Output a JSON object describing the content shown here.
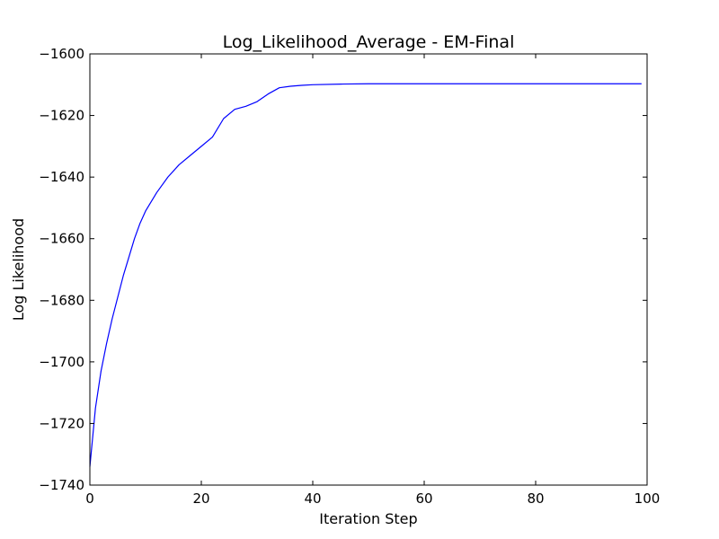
{
  "chart_data": {
    "type": "line",
    "title": "Log_Likelihood_Average - EM-Final",
    "xlabel": "Iteration Step",
    "ylabel": "Log Likelihood",
    "xlim": [
      0,
      100
    ],
    "ylim": [
      -1740,
      -1600
    ],
    "xticks": [
      0,
      20,
      40,
      60,
      80,
      100
    ],
    "yticks": [
      -1740,
      -1720,
      -1700,
      -1680,
      -1660,
      -1640,
      -1620,
      -1600
    ],
    "xtick_labels": [
      "0",
      "20",
      "40",
      "60",
      "80",
      "100"
    ],
    "ytick_labels": [
      "−1740",
      "−1720",
      "−1700",
      "−1680",
      "−1660",
      "−1640",
      "−1620",
      "−1600"
    ],
    "grid": false,
    "legend": "none",
    "series": [
      {
        "color": "#0000ff",
        "x": [
          0,
          1,
          2,
          3,
          4,
          5,
          6,
          7,
          8,
          9,
          10,
          12,
          14,
          16,
          18,
          20,
          22,
          24,
          26,
          28,
          30,
          32,
          34,
          36,
          38,
          40,
          45,
          50,
          60,
          70,
          80,
          90,
          99
        ],
        "y": [
          -1734,
          -1715,
          -1703,
          -1694,
          -1686,
          -1679,
          -1672,
          -1666,
          -1660,
          -1655,
          -1651,
          -1645,
          -1640,
          -1636,
          -1633,
          -1630,
          -1627,
          -1621,
          -1618,
          -1617,
          -1615.5,
          -1613,
          -1611,
          -1610.5,
          -1610.2,
          -1610,
          -1609.8,
          -1609.7,
          -1609.7,
          -1609.7,
          -1609.7,
          -1609.7,
          -1609.7
        ]
      }
    ]
  }
}
